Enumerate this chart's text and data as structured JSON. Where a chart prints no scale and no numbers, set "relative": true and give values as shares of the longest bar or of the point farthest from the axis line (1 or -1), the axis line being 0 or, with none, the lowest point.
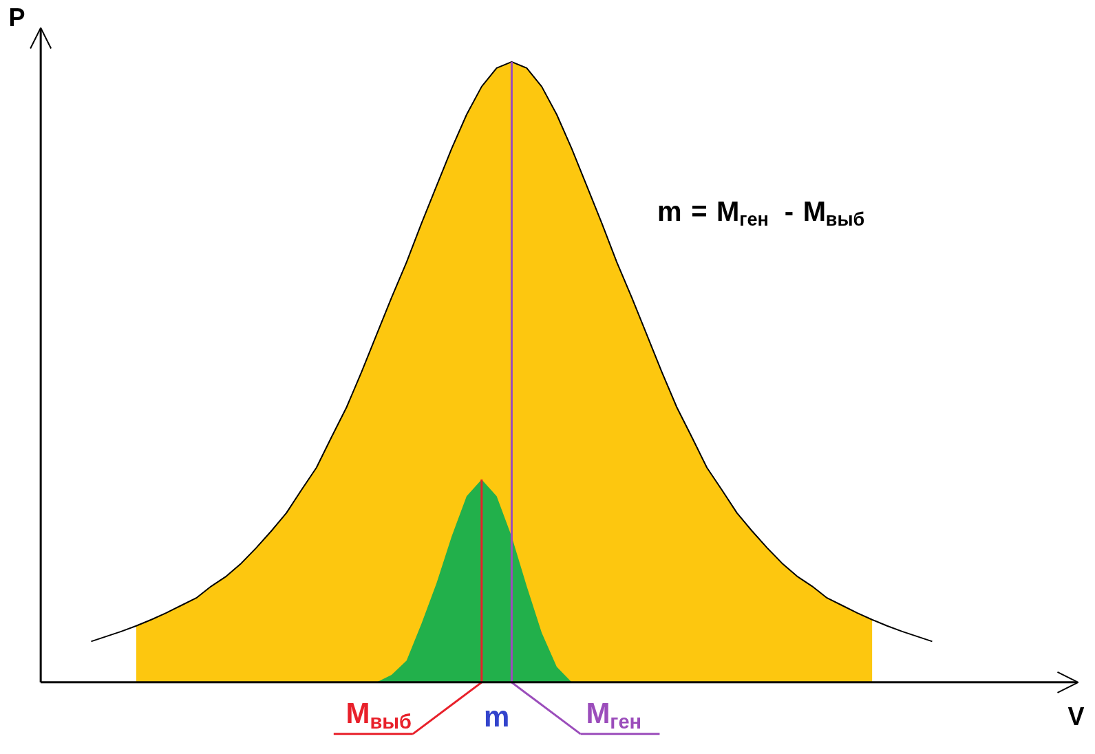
{
  "chart_data": {
    "type": "area",
    "relative": true,
    "ylabel": "P",
    "tick_labels": false,
    "grid": false,
    "categories": [
      null,
      null,
      null,
      null,
      null,
      null,
      null,
      null,
      null,
      null,
      null,
      null,
      null,
      null,
      null,
      null,
      null,
      null,
      null,
      null,
      null,
      null,
      null,
      null,
      null,
      null,
      null,
      null,
      null,
      null,
      null,
      null,
      null,
      null,
      null,
      null,
      null,
      null,
      null,
      null,
      null,
      null,
      null,
      null,
      null,
      null,
      null,
      null,
      null,
      null,
      null,
      null,
      null,
      null,
      null,
      null,
      null
    ],
    "series": [
      {
        "color": "#fdc70f",
        "values": [
          null,
          null,
          null,
          0.091,
          0.101,
          0.112,
          0.124,
          0.136,
          0.155,
          0.171,
          0.192,
          0.217,
          0.244,
          0.273,
          0.31,
          0.346,
          0.395,
          0.443,
          0.5,
          0.56,
          0.62,
          0.677,
          0.74,
          0.8,
          0.86,
          0.915,
          0.96,
          0.99,
          1.0,
          0.99,
          0.96,
          0.915,
          0.86,
          0.8,
          0.74,
          0.677,
          0.62,
          0.56,
          0.5,
          0.443,
          0.395,
          0.346,
          0.31,
          0.273,
          0.244,
          0.217,
          0.192,
          0.171,
          0.155,
          0.136,
          0.124,
          0.112,
          0.101,
          null,
          null,
          null,
          null
        ]
      },
      {
        "type": "line",
        "color": "#000000",
        "values": [
          0.066,
          0.074,
          0.082,
          0.091,
          0.101,
          0.112,
          0.124,
          0.136,
          0.155,
          0.171,
          0.192,
          0.217,
          0.244,
          0.273,
          0.31,
          0.346,
          0.395,
          0.443,
          0.5,
          0.56,
          0.62,
          0.677,
          0.74,
          0.8,
          0.86,
          0.915,
          0.96,
          0.99,
          1.0,
          0.99,
          0.96,
          0.915,
          0.86,
          0.8,
          0.74,
          0.677,
          0.62,
          0.56,
          0.5,
          0.443,
          0.395,
          0.346,
          0.31,
          0.273,
          0.244,
          0.217,
          0.192,
          0.171,
          0.155,
          0.136,
          0.124,
          0.112,
          0.101,
          0.091,
          0.082,
          0.074,
          0.066
        ]
      },
      {
        "color": "#22b04b",
        "values": [
          null,
          null,
          null,
          null,
          null,
          null,
          null,
          null,
          null,
          null,
          null,
          null,
          null,
          null,
          null,
          null,
          null,
          null,
          null,
          0,
          0.012,
          0.035,
          0.095,
          0.16,
          0.235,
          0.3,
          0.327,
          0.3,
          0.235,
          0.155,
          0.08,
          0.025,
          0,
          null,
          null,
          null,
          null,
          null,
          null,
          null,
          null,
          null,
          null,
          null,
          null,
          null,
          null,
          null,
          null,
          null,
          null,
          null,
          null,
          null,
          null,
          null,
          null
        ]
      }
    ],
    "annotations": [
      "M$_{выб}$",
      "m",
      "M$_{ген}$",
      "m = M$_{ген}$ - M$_{выб}$",
      "V"
    ]
  }
}
